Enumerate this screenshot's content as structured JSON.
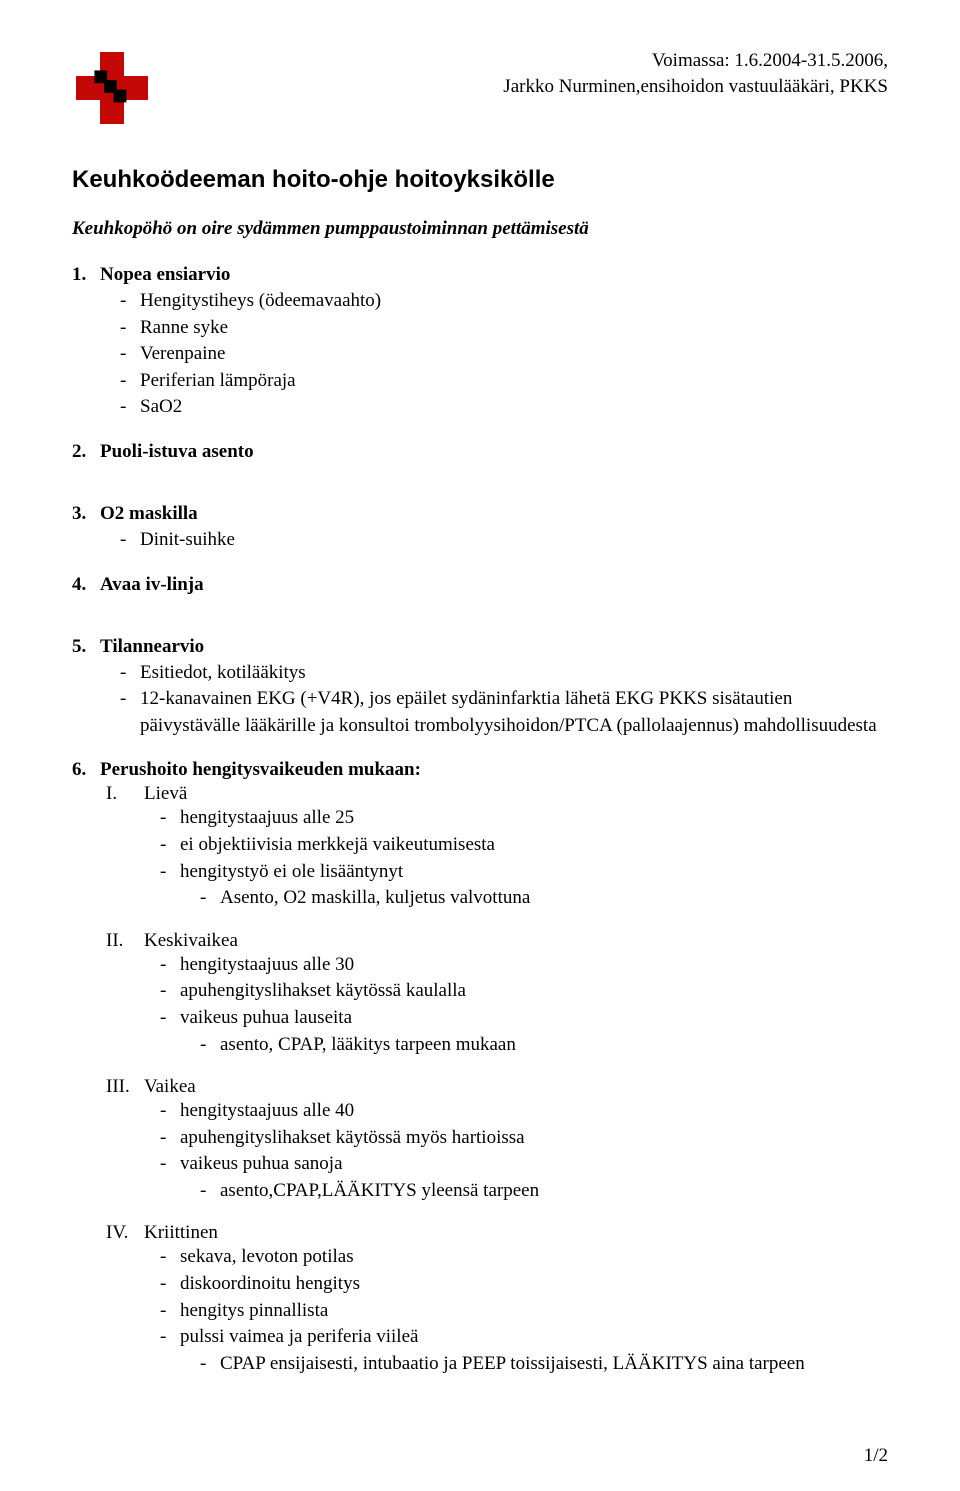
{
  "header": {
    "validity_label": "Voimassa:",
    "validity_dates": "1.6.2004-31.5.2006,",
    "author_line": "Jarkko Nurminen,ensihoidon vastuulääkäri, PKKS",
    "logo_colors": {
      "red": "#c40808",
      "black": "#000000"
    }
  },
  "title": "Keuhkoödeeman hoito-ohje hoitoyksikölle",
  "lead": "Keuhkopöhö on oire sydämmen pumppaustoiminnan pettämisestä",
  "sections": [
    {
      "num": "1.",
      "title": "Nopea ensiarvio",
      "items": [
        "Hengitystiheys (ödeemavaahto)",
        "Ranne syke",
        "Verenpaine",
        "Periferian lämpöraja",
        "SaO2"
      ]
    },
    {
      "num": "2.",
      "title": "Puoli-istuva asento",
      "items": []
    },
    {
      "num": "3.",
      "title": "O2 maskilla",
      "items": [
        "Dinit-suihke"
      ]
    },
    {
      "num": "4.",
      "title": "Avaa iv-linja",
      "items": []
    },
    {
      "num": "5.",
      "title": "Tilannearvio",
      "items": [
        "Esitiedot, kotilääkitys",
        "12-kanavainen EKG (+V4R), jos epäilet sydäninfarktia lähetä EKG PKKS sisätautien päivystävälle lääkärille ja konsultoi trombolyysihoidon/PTCA (pallolaajennus) mahdollisuudesta"
      ]
    }
  ],
  "section6": {
    "num": "6.",
    "title": "Perushoito hengitysvaikeuden mukaan:",
    "groups": [
      {
        "roman": "I.",
        "label": "Lievä",
        "items": [
          "hengitystaajuus alle 25",
          "ei objektiivisia merkkejä vaikeutumisesta",
          "hengitystyö ei ole lisääntynyt"
        ],
        "sub": [
          "Asento, O2 maskilla, kuljetus valvottuna"
        ]
      },
      {
        "roman": "II.",
        "label": "Keskivaikea",
        "items": [
          "hengitystaajuus alle 30",
          "apuhengityslihakset käytössä kaulalla",
          "vaikeus puhua lauseita"
        ],
        "sub": [
          "asento, CPAP, lääkitys tarpeen mukaan"
        ]
      },
      {
        "roman": "III.",
        "label": "Vaikea",
        "items": [
          "hengitystaajuus alle 40",
          "apuhengityslihakset käytössä myös hartioissa",
          "vaikeus puhua sanoja"
        ],
        "sub": [
          "asento,CPAP,LÄÄKITYS yleensä tarpeen"
        ]
      },
      {
        "roman": "IV.",
        "label": "Kriittinen",
        "items": [
          "sekava, levoton potilas",
          "diskoordinoitu hengitys",
          "hengitys pinnallista",
          "pulssi vaimea ja periferia viileä"
        ],
        "sub": [
          "CPAP ensijaisesti, intubaatio ja PEEP toissijaisesti, LÄÄKITYS aina tarpeen"
        ]
      }
    ]
  },
  "page_number": "1/2"
}
